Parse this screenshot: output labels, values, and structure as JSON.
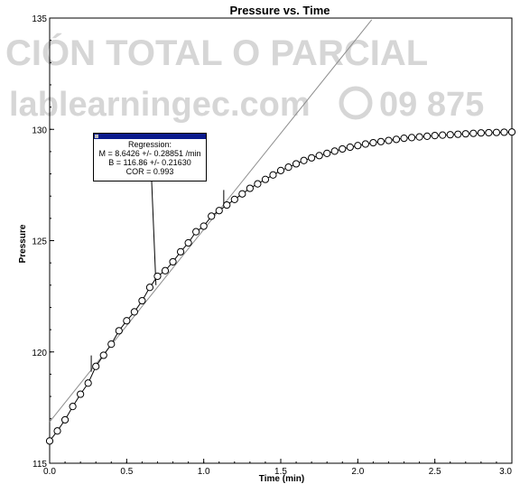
{
  "watermark": {
    "line1": "CIÓN TOTAL O PARCIAL",
    "line2": "lablearningec.com",
    "phone": "09 875"
  },
  "regression": {
    "title": "Regression:",
    "slope": "M = 8.6426 +/- 0.28851 /min",
    "intercept": "B = 116.86 +/- 0.21630",
    "cor": "COR = 0.993",
    "bar_color": "#0a1a8c"
  },
  "colors": {
    "series": "#000000",
    "fit_line": "#8c8c8c"
  },
  "chart_data": {
    "type": "line",
    "title": "Pressure vs. Time",
    "xlabel": "Time (min)",
    "ylabel": "Pressure",
    "xlim": [
      0,
      3.0
    ],
    "ylim": [
      115,
      135
    ],
    "x_ticks": [
      "0.0",
      "0.5",
      "1.0",
      "1.5",
      "2.0",
      "2.5",
      "3.0"
    ],
    "y_ticks": [
      "115",
      "120",
      "125",
      "130",
      "135"
    ],
    "grid": false,
    "legend": "none",
    "series": [
      {
        "marker": "circle",
        "x": [
          0.0,
          0.05,
          0.1,
          0.15,
          0.2,
          0.25,
          0.3,
          0.35,
          0.4,
          0.45,
          0.5,
          0.55,
          0.6,
          0.65,
          0.7,
          0.75,
          0.8,
          0.85,
          0.9,
          0.95,
          1.0,
          1.05,
          1.1,
          1.15,
          1.2,
          1.25,
          1.3,
          1.35,
          1.4,
          1.45,
          1.5,
          1.55,
          1.6,
          1.65,
          1.7,
          1.75,
          1.8,
          1.85,
          1.9,
          1.95,
          2.0,
          2.05,
          2.1,
          2.15,
          2.2,
          2.25,
          2.3,
          2.35,
          2.4,
          2.45,
          2.5,
          2.55,
          2.6,
          2.65,
          2.7,
          2.75,
          2.8,
          2.85,
          2.9,
          2.95,
          3.0
        ],
        "y": [
          116.0,
          116.45,
          116.95,
          117.55,
          118.1,
          118.6,
          119.35,
          119.85,
          120.35,
          120.95,
          121.4,
          121.8,
          122.3,
          122.9,
          123.4,
          123.65,
          124.05,
          124.5,
          124.9,
          125.4,
          125.65,
          126.1,
          126.35,
          126.6,
          126.85,
          127.1,
          127.35,
          127.55,
          127.75,
          127.95,
          128.15,
          128.3,
          128.45,
          128.6,
          128.72,
          128.82,
          128.92,
          129.02,
          129.12,
          129.2,
          129.27,
          129.34,
          129.4,
          129.45,
          129.5,
          129.55,
          129.6,
          129.63,
          129.66,
          129.69,
          129.72,
          129.74,
          129.76,
          129.78,
          129.8,
          129.82,
          129.84,
          129.85,
          129.86,
          129.87,
          129.88
        ]
      }
    ],
    "fit_line": {
      "slope": 8.6426,
      "intercept": 116.86,
      "x_start": 0.0,
      "x_end": 2.09
    },
    "fit_range": {
      "x_start": 0.27,
      "x_end": 1.13
    },
    "annotation_point": {
      "x": 0.69,
      "y": 123.0
    }
  }
}
